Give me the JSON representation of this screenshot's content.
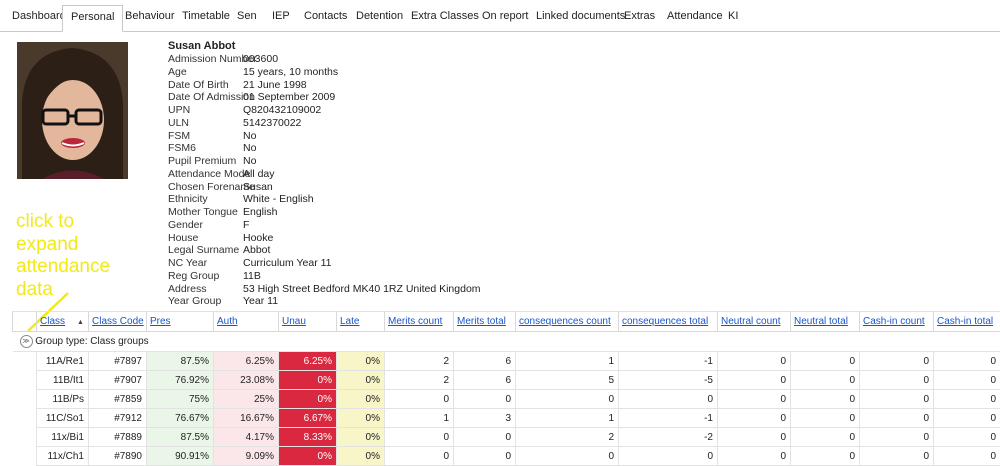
{
  "tabs": [
    {
      "label": "Dashboard"
    },
    {
      "label": "Personal",
      "active": true
    },
    {
      "label": "Behaviour"
    },
    {
      "label": "Timetable"
    },
    {
      "label": "Sen"
    },
    {
      "label": "IEP"
    },
    {
      "label": "Contacts"
    },
    {
      "label": "Detention"
    },
    {
      "label": "Extra Classes"
    },
    {
      "label": "On report"
    },
    {
      "label": "Linked documents"
    },
    {
      "label": "Extras"
    },
    {
      "label": "Attendance"
    },
    {
      "label": "KI"
    }
  ],
  "student": {
    "name": "Susan Abbot",
    "fields": [
      {
        "label": "Admission Number",
        "value": "003600"
      },
      {
        "label": "Age",
        "value": "15 years, 10 months"
      },
      {
        "label": "Date Of Birth",
        "value": "21 June 1998"
      },
      {
        "label": "Date Of Admission",
        "value": "01 September 2009"
      },
      {
        "label": "UPN",
        "value": "Q820432109002"
      },
      {
        "label": "ULN",
        "value": "5142370022"
      },
      {
        "label": "FSM",
        "value": "No"
      },
      {
        "label": "FSM6",
        "value": "No"
      },
      {
        "label": "Pupil Premium",
        "value": "No"
      },
      {
        "label": "Attendance Mode",
        "value": "All day"
      },
      {
        "label": "Chosen Forename",
        "value": "Susan"
      },
      {
        "label": "Ethnicity",
        "value": "White - English"
      },
      {
        "label": "Mother Tongue",
        "value": "English"
      },
      {
        "label": "Gender",
        "value": "F"
      },
      {
        "label": "House",
        "value": "Hooke"
      },
      {
        "label": "Legal Surname",
        "value": "Abbot"
      },
      {
        "label": "NC Year",
        "value": "Curriculum Year 11"
      },
      {
        "label": "Reg Group",
        "value": "11B"
      },
      {
        "label": "Address",
        "value": "53 High Street Bedford MK40 1RZ United Kingdom"
      },
      {
        "label": "Year Group",
        "value": "Year 11"
      }
    ]
  },
  "annotation": {
    "lines": [
      "click to",
      "expand",
      "attendance",
      "data"
    ],
    "color": "#f1ea17"
  },
  "grid": {
    "columns": [
      "Class",
      "Class Code",
      "Pres",
      "Auth",
      "Unau",
      "Late",
      "Merits count",
      "Merits total",
      "consequences count",
      "consequences total",
      "Neutral count",
      "Neutral total",
      "Cash-in count",
      "Cash-in total"
    ],
    "sort_indicator": "▲",
    "group_label": "Group type: Class groups",
    "rows": [
      {
        "class": "11A/Re1",
        "code": "#7897",
        "pres": "87.5%",
        "auth": "6.25%",
        "unau": "6.25%",
        "late": "0%",
        "merits_count": "2",
        "merits_total": "6",
        "cons_count": "1",
        "cons_total": "-1",
        "neutral_count": "0",
        "neutral_total": "0",
        "cash_count": "0",
        "cash_total": "0"
      },
      {
        "class": "11B/It1",
        "code": "#7907",
        "pres": "76.92%",
        "auth": "23.08%",
        "unau": "0%",
        "late": "0%",
        "merits_count": "2",
        "merits_total": "6",
        "cons_count": "5",
        "cons_total": "-5",
        "neutral_count": "0",
        "neutral_total": "0",
        "cash_count": "0",
        "cash_total": "0"
      },
      {
        "class": "11B/Ps",
        "code": "#7859",
        "pres": "75%",
        "auth": "25%",
        "unau": "0%",
        "late": "0%",
        "merits_count": "0",
        "merits_total": "0",
        "cons_count": "0",
        "cons_total": "0",
        "neutral_count": "0",
        "neutral_total": "0",
        "cash_count": "0",
        "cash_total": "0"
      },
      {
        "class": "11C/So1",
        "code": "#7912",
        "pres": "76.67%",
        "auth": "16.67%",
        "unau": "6.67%",
        "late": "0%",
        "merits_count": "1",
        "merits_total": "3",
        "cons_count": "1",
        "cons_total": "-1",
        "neutral_count": "0",
        "neutral_total": "0",
        "cash_count": "0",
        "cash_total": "0"
      },
      {
        "class": "11x/Bi1",
        "code": "#7889",
        "pres": "87.5%",
        "auth": "4.17%",
        "unau": "8.33%",
        "late": "0%",
        "merits_count": "0",
        "merits_total": "0",
        "cons_count": "2",
        "cons_total": "-2",
        "neutral_count": "0",
        "neutral_total": "0",
        "cash_count": "0",
        "cash_total": "0"
      },
      {
        "class": "11x/Ch1",
        "code": "#7890",
        "pres": "90.91%",
        "auth": "9.09%",
        "unau": "0%",
        "late": "0%",
        "merits_count": "0",
        "merits_total": "0",
        "cons_count": "0",
        "cons_total": "0",
        "neutral_count": "0",
        "neutral_total": "0",
        "cash_count": "0",
        "cash_total": "0"
      }
    ]
  },
  "colors": {
    "link": "#1a55c7",
    "pres_bg": "#eaf7e8",
    "auth_bg": "#fbe6ea",
    "unau_bg": "#d9283f",
    "late_bg": "#f8f6c8"
  }
}
